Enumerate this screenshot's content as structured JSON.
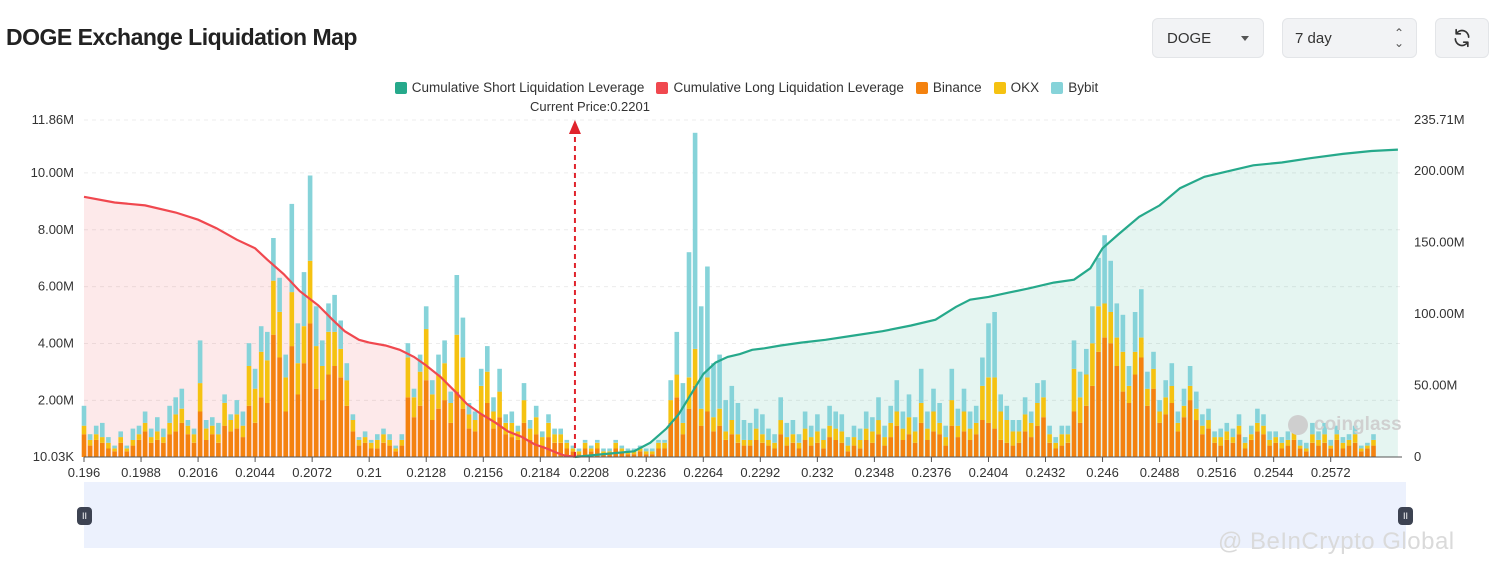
{
  "header": {
    "title": "DOGE Exchange Liquidation Map",
    "symbol_select": "DOGE",
    "period_select": "7 day"
  },
  "legend": [
    {
      "label": "Cumulative Short Liquidation Leverage",
      "color": "#26a98b"
    },
    {
      "label": "Cumulative Long Liquidation Leverage",
      "color": "#f0484f"
    },
    {
      "label": "Binance",
      "color": "#f4820f"
    },
    {
      "label": "OKX",
      "color": "#f5c211"
    },
    {
      "label": "Bybit",
      "color": "#86d3d9"
    }
  ],
  "current_price_label": "Current Price:0.2201",
  "watermarks": {
    "coinglass": "coinglass",
    "beincrypto": "@ BeInCrypto Global"
  },
  "chart_data": {
    "type": "bar",
    "current_price": 0.2201,
    "xlim": [
      0.196,
      0.2607
    ],
    "x_ticks": [
      "0.196",
      "0.1988",
      "0.2016",
      "0.2044",
      "0.2072",
      "0.21",
      "0.2128",
      "0.2156",
      "0.2184",
      "0.2208",
      "0.2236",
      "0.2264",
      "0.2292",
      "0.232",
      "0.2348",
      "0.2376",
      "0.2404",
      "0.2432",
      "0.246",
      "0.2488",
      "0.2516",
      "0.2544",
      "0.2572"
    ],
    "y_left": {
      "ticks": [
        "10.03K",
        "2.00M",
        "4.00M",
        "6.00M",
        "8.00M",
        "10.00M",
        "11.86M"
      ],
      "tick_values": [
        0.01,
        2,
        4,
        6,
        8,
        10,
        11.86
      ],
      "ylim": [
        0.01,
        11.86
      ],
      "unit": "M"
    },
    "y_right": {
      "ticks": [
        "0",
        "50.00M",
        "100.00M",
        "150.00M",
        "200.00M",
        "235.71M"
      ],
      "tick_values": [
        0,
        50,
        100,
        150,
        200,
        235.71
      ],
      "ylim": [
        0,
        235.71
      ],
      "unit": "M"
    },
    "bars": {
      "stack_order": [
        "Binance",
        "OKX",
        "Bybit"
      ],
      "x": [
        0.196,
        0.1963,
        0.1966,
        0.1969,
        0.1972,
        0.1975,
        0.1978,
        0.1981,
        0.1984,
        0.1987,
        0.199,
        0.1993,
        0.1996,
        0.1999,
        0.2002,
        0.2005,
        0.2008,
        0.2011,
        0.2014,
        0.2017,
        0.202,
        0.2023,
        0.2026,
        0.2029,
        0.2032,
        0.2035,
        0.2038,
        0.2041,
        0.2044,
        0.2047,
        0.205,
        0.2053,
        0.2056,
        0.2059,
        0.2062,
        0.2065,
        0.2068,
        0.2071,
        0.2074,
        0.2077,
        0.208,
        0.2083,
        0.2086,
        0.2089,
        0.2092,
        0.2095,
        0.2098,
        0.2101,
        0.2104,
        0.2107,
        0.211,
        0.2113,
        0.2116,
        0.2119,
        0.2122,
        0.2125,
        0.2128,
        0.2131,
        0.2134,
        0.2137,
        0.214,
        0.2143,
        0.2146,
        0.2149,
        0.2152,
        0.2155,
        0.2158,
        0.2161,
        0.2164,
        0.2167,
        0.217,
        0.2173,
        0.2176,
        0.2179,
        0.2182,
        0.2185,
        0.2188,
        0.2191,
        0.2194,
        0.2197,
        0.22,
        0.2203,
        0.2206,
        0.2209,
        0.2212,
        0.2215,
        0.2218,
        0.2221,
        0.2224,
        0.2227,
        0.223,
        0.2233,
        0.2236,
        0.2239,
        0.2242,
        0.2245,
        0.2248,
        0.2251,
        0.2254,
        0.2257,
        0.226,
        0.2263,
        0.2266,
        0.2269,
        0.2272,
        0.2275,
        0.2278,
        0.2281,
        0.2284,
        0.2287,
        0.229,
        0.2293,
        0.2296,
        0.2299,
        0.2302,
        0.2305,
        0.2308,
        0.2311,
        0.2314,
        0.2317,
        0.232,
        0.2323,
        0.2326,
        0.2329,
        0.2332,
        0.2335,
        0.2338,
        0.2341,
        0.2344,
        0.2347,
        0.235,
        0.2353,
        0.2356,
        0.2359,
        0.2362,
        0.2365,
        0.2368,
        0.2371,
        0.2374,
        0.2377,
        0.238,
        0.2383,
        0.2386,
        0.2389,
        0.2392,
        0.2395,
        0.2398,
        0.2401,
        0.2404,
        0.2407,
        0.241,
        0.2413,
        0.2416,
        0.2419,
        0.2422,
        0.2425,
        0.2428,
        0.2431,
        0.2434,
        0.2437,
        0.244,
        0.2443,
        0.2446,
        0.2449,
        0.2452,
        0.2455,
        0.2458,
        0.2461,
        0.2464,
        0.2467,
        0.247,
        0.2473,
        0.2476,
        0.2479,
        0.2482,
        0.2485,
        0.2488,
        0.2491,
        0.2494,
        0.2497,
        0.25,
        0.2503,
        0.2506,
        0.2509,
        0.2512,
        0.2515,
        0.2518,
        0.2521,
        0.2524,
        0.2527,
        0.253,
        0.2533,
        0.2536,
        0.2539,
        0.2542,
        0.2545,
        0.2548,
        0.2551,
        0.2554,
        0.2557,
        0.256,
        0.2563,
        0.2566,
        0.2569,
        0.2572,
        0.2575,
        0.2578,
        0.2581,
        0.2584,
        0.2587,
        0.259,
        0.2593,
        0.2596,
        0.2599,
        0.2602,
        0.2605
      ],
      "series": [
        {
          "name": "Binance",
          "values": [
            0.8,
            0.4,
            0.6,
            0.5,
            0.3,
            0.2,
            0.5,
            0.2,
            0.4,
            0.6,
            0.9,
            0.5,
            0.6,
            0.5,
            0.8,
            0.9,
            1.2,
            0.8,
            0.5,
            1.6,
            0.6,
            0.8,
            0.5,
            1.1,
            0.9,
            1.0,
            0.7,
            1.8,
            1.2,
            2.1,
            1.9,
            4.3,
            3.5,
            1.6,
            3.9,
            2.2,
            3.3,
            4.7,
            2.4,
            2.0,
            2.9,
            3.2,
            2.8,
            1.8,
            0.9,
            0.4,
            0.5,
            0.3,
            0.3,
            0.5,
            0.4,
            0.2,
            0.4,
            2.1,
            1.4,
            1.8,
            2.7,
            1.3,
            1.7,
            2.0,
            1.2,
            2.3,
            1.7,
            1.0,
            0.9,
            1.5,
            1.9,
            1.0,
            1.4,
            0.8,
            0.7,
            0.6,
            1.2,
            0.6,
            0.8,
            0.4,
            0.7,
            0.5,
            0.5,
            0.3,
            0.2,
            0.1,
            0.3,
            0.2,
            0.3,
            0.1,
            0.1,
            0.3,
            0.2,
            0.1,
            0.1,
            0.2,
            0.1,
            0.1,
            0.3,
            0.3,
            1.2,
            2.1,
            0.8,
            1.7,
            2.5,
            1.1,
            1.6,
            0.9,
            1.1,
            0.6,
            0.8,
            0.5,
            0.4,
            0.4,
            0.6,
            0.5,
            0.4,
            0.3,
            0.8,
            0.4,
            0.5,
            0.3,
            0.6,
            0.4,
            0.5,
            0.3,
            0.7,
            0.6,
            0.5,
            0.2,
            0.4,
            0.3,
            0.6,
            0.5,
            0.8,
            0.4,
            0.7,
            1.1,
            0.6,
            0.8,
            0.5,
            1.2,
            0.6,
            0.9,
            0.8,
            0.4,
            1.1,
            0.7,
            0.9,
            0.6,
            0.8,
            1.3,
            1.2,
            1.0,
            0.6,
            0.5,
            0.4,
            0.5,
            0.9,
            0.7,
            1.1,
            1.4,
            0.5,
            0.3,
            0.4,
            0.5,
            1.6,
            1.2,
            1.8,
            2.5,
            3.7,
            4.2,
            4.0,
            3.2,
            2.3,
            1.9,
            2.9,
            3.5,
            1.8,
            2.4,
            1.2,
            1.5,
            1.9,
            0.9,
            1.4,
            2.0,
            1.3,
            0.8,
            1.0,
            0.5,
            0.4,
            0.6,
            0.5,
            0.8,
            0.3,
            0.6,
            0.9,
            0.8,
            0.4,
            0.5,
            0.3,
            0.4,
            0.6,
            0.3,
            0.2,
            0.5,
            0.4,
            0.5,
            0.3,
            0.6,
            0.3,
            0.4,
            0.5,
            0.2,
            0.3,
            0.4
          ]
        },
        {
          "name": "OKX",
          "values": [
            0.3,
            0.2,
            0.2,
            0.2,
            0.2,
            0.1,
            0.2,
            0.1,
            0.2,
            0.2,
            0.3,
            0.2,
            0.3,
            0.2,
            0.4,
            0.6,
            0.5,
            0.3,
            0.3,
            1.0,
            0.4,
            0.3,
            0.3,
            0.8,
            0.4,
            0.5,
            0.4,
            1.4,
            1.2,
            1.6,
            1.5,
            1.9,
            1.6,
            1.2,
            1.9,
            1.1,
            1.3,
            2.2,
            1.5,
            1.2,
            1.5,
            1.2,
            1.0,
            0.9,
            0.4,
            0.2,
            0.2,
            0.2,
            0.3,
            0.3,
            0.2,
            0.1,
            0.2,
            1.4,
            0.7,
            1.2,
            1.8,
            0.9,
            1.2,
            1.3,
            0.7,
            2.0,
            1.8,
            0.5,
            0.4,
            1.0,
            1.1,
            0.6,
            0.9,
            0.4,
            0.5,
            0.3,
            0.8,
            0.4,
            0.6,
            0.3,
            0.5,
            0.3,
            0.3,
            0.2,
            0.1,
            0.1,
            0.2,
            0.1,
            0.2,
            0.1,
            0.1,
            0.2,
            0.1,
            0.1,
            0.1,
            0.1,
            0.1,
            0.1,
            0.2,
            0.2,
            0.8,
            0.8,
            0.4,
            1.1,
            1.3,
            0.6,
            1.2,
            0.5,
            0.6,
            0.3,
            0.5,
            0.3,
            0.2,
            0.2,
            0.4,
            0.3,
            0.2,
            0.2,
            0.5,
            0.3,
            0.3,
            0.2,
            0.4,
            0.3,
            0.4,
            0.3,
            0.4,
            0.4,
            0.4,
            0.2,
            0.3,
            0.3,
            0.4,
            0.4,
            0.5,
            0.3,
            0.5,
            0.5,
            0.4,
            0.6,
            0.4,
            0.7,
            0.4,
            0.7,
            0.4,
            0.3,
            0.9,
            0.4,
            0.7,
            0.4,
            0.4,
            1.2,
            1.6,
            1.8,
            1.0,
            0.8,
            0.5,
            0.4,
            0.6,
            0.5,
            0.8,
            0.7,
            0.3,
            0.2,
            0.4,
            0.3,
            1.5,
            0.9,
            1.1,
            1.5,
            1.6,
            1.2,
            1.1,
            1.0,
            1.4,
            0.6,
            0.8,
            0.7,
            0.6,
            0.7,
            0.4,
            0.6,
            0.6,
            0.3,
            0.4,
            0.5,
            0.4,
            0.3,
            0.3,
            0.2,
            0.3,
            0.3,
            0.2,
            0.3,
            0.2,
            0.2,
            0.3,
            0.3,
            0.2,
            0.2,
            0.2,
            0.2,
            0.3,
            0.1,
            0.1,
            0.3,
            0.2,
            0.3,
            0.1,
            0.2,
            0.2,
            0.2,
            0.3,
            0.1,
            0.1,
            0.2
          ]
        },
        {
          "name": "Bybit",
          "values": [
            0.7,
            0.2,
            0.3,
            0.5,
            0.2,
            0.1,
            0.2,
            0.1,
            0.4,
            0.3,
            0.4,
            0.3,
            0.5,
            0.3,
            0.6,
            0.6,
            0.7,
            0.2,
            0.2,
            1.5,
            0.3,
            0.3,
            0.4,
            0.3,
            0.2,
            0.5,
            0.5,
            0.8,
            0.7,
            0.9,
            1.0,
            1.5,
            1.2,
            0.8,
            3.1,
            1.4,
            1.9,
            3.0,
            1.4,
            0.9,
            1.0,
            1.3,
            1.0,
            0.6,
            0.2,
            0.1,
            0.2,
            0.1,
            0.2,
            0.2,
            0.2,
            0.1,
            0.2,
            0.5,
            0.3,
            0.6,
            0.8,
            0.5,
            0.7,
            0.8,
            0.4,
            2.1,
            1.4,
            0.4,
            0.3,
            0.6,
            0.9,
            0.5,
            0.8,
            0.3,
            0.4,
            0.2,
            0.6,
            0.3,
            0.4,
            0.2,
            0.3,
            0.2,
            0.2,
            0.1,
            0.1,
            0.1,
            0.1,
            0.1,
            0.1,
            0.1,
            0.1,
            0.1,
            0.1,
            0.1,
            0.1,
            0.1,
            0.1,
            0.1,
            0.1,
            0.1,
            0.7,
            1.5,
            1.4,
            4.4,
            7.6,
            3.6,
            3.9,
            1.9,
            1.9,
            1.1,
            1.2,
            1.1,
            0.7,
            0.6,
            0.7,
            0.7,
            0.4,
            0.3,
            0.8,
            0.5,
            0.5,
            0.3,
            0.6,
            0.4,
            0.6,
            0.4,
            0.7,
            0.6,
            0.6,
            0.3,
            0.4,
            0.4,
            0.6,
            0.5,
            0.8,
            0.4,
            0.6,
            1.1,
            0.6,
            0.8,
            0.5,
            1.2,
            0.6,
            0.8,
            0.7,
            0.4,
            1.1,
            0.6,
            0.8,
            0.6,
            0.6,
            1.0,
            1.9,
            2.3,
            0.6,
            0.5,
            0.4,
            0.4,
            0.6,
            0.4,
            0.7,
            0.6,
            0.3,
            0.2,
            0.3,
            0.3,
            1.0,
            0.9,
            0.9,
            1.3,
            1.7,
            2.4,
            1.8,
            1.2,
            1.3,
            0.7,
            1.4,
            1.7,
            0.6,
            0.6,
            0.4,
            0.6,
            0.8,
            0.4,
            0.6,
            0.7,
            0.6,
            0.4,
            0.4,
            0.2,
            0.3,
            0.3,
            0.3,
            0.4,
            0.2,
            0.3,
            0.5,
            0.4,
            0.3,
            0.2,
            0.2,
            0.3,
            0.4,
            0.2,
            0.2,
            0.4,
            0.3,
            0.4,
            0.2,
            0.3,
            0.2,
            0.2,
            0.3,
            0.1,
            0.1,
            0.2
          ]
        }
      ]
    },
    "long_cumulative": {
      "name": "Cumulative Long Liquidation Leverage",
      "axis": "right",
      "x": [
        0.196,
        0.1975,
        0.199,
        0.2005,
        0.2016,
        0.2025,
        0.2035,
        0.2044,
        0.205,
        0.2058,
        0.2066,
        0.2075,
        0.2082,
        0.2088,
        0.2095,
        0.21,
        0.2108,
        0.2115,
        0.2122,
        0.2128,
        0.2135,
        0.2142,
        0.2148,
        0.2155,
        0.2162,
        0.2168,
        0.2175,
        0.2181,
        0.2187,
        0.2192,
        0.2196,
        0.22,
        0.2201
      ],
      "values": [
        182,
        178,
        176,
        171,
        166,
        160,
        152,
        146,
        138,
        128,
        116,
        106,
        96,
        88,
        82,
        80,
        78,
        75,
        70,
        64,
        56,
        46,
        37,
        30,
        24,
        18,
        14,
        9,
        6,
        3,
        1,
        0.4,
        0
      ]
    },
    "short_cumulative": {
      "name": "Cumulative Short Liquidation Leverage",
      "axis": "right",
      "x": [
        0.2201,
        0.2215,
        0.223,
        0.2238,
        0.2246,
        0.2252,
        0.2258,
        0.2264,
        0.227,
        0.2276,
        0.2282,
        0.2288,
        0.2294,
        0.2302,
        0.2312,
        0.2324,
        0.2338,
        0.2352,
        0.2366,
        0.2378,
        0.2388,
        0.2395,
        0.2404,
        0.2414,
        0.2424,
        0.2436,
        0.2446,
        0.2454,
        0.246,
        0.2468,
        0.2478,
        0.2488,
        0.2498,
        0.251,
        0.2522,
        0.2534,
        0.2548,
        0.2562,
        0.2578,
        0.2592,
        0.2605
      ],
      "values": [
        0,
        2,
        4,
        10,
        20,
        30,
        44,
        58,
        66,
        70,
        72,
        75,
        76,
        78,
        80,
        82,
        85,
        88,
        92,
        96,
        105,
        110,
        112,
        115,
        118,
        122,
        124,
        132,
        146,
        156,
        168,
        176,
        188,
        196,
        200,
        204,
        206,
        209,
        212,
        214,
        215
      ]
    }
  }
}
